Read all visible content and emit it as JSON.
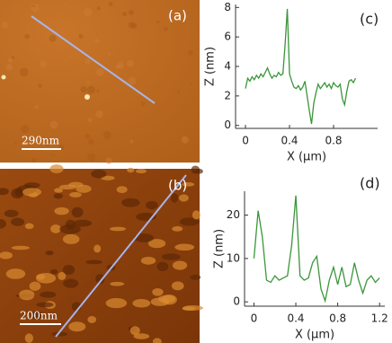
{
  "images": [
    {
      "label": "(a)",
      "scale_bar": "290nm"
    },
    {
      "label": "(b)",
      "scale_bar": "200nm"
    }
  ],
  "chart_data": [
    {
      "type": "line",
      "label": "(c)",
      "x_label": "X (µm)",
      "y_label": "Z (nm)",
      "x": [
        0,
        0.02,
        0.04,
        0.06,
        0.08,
        0.1,
        0.12,
        0.14,
        0.16,
        0.18,
        0.2,
        0.22,
        0.24,
        0.26,
        0.28,
        0.3,
        0.32,
        0.34,
        0.36,
        0.38,
        0.4,
        0.42,
        0.44,
        0.46,
        0.48,
        0.5,
        0.52,
        0.54,
        0.56,
        0.58,
        0.6,
        0.62,
        0.64,
        0.66,
        0.68,
        0.7,
        0.72,
        0.74,
        0.76,
        0.78,
        0.8,
        0.82,
        0.84,
        0.86,
        0.88,
        0.9,
        0.92,
        0.94,
        0.96,
        0.98,
        1.0
      ],
      "series": [
        {
          "color": "#3a963a",
          "values": [
            2.5,
            3.2,
            3.0,
            3.3,
            3.1,
            3.4,
            3.2,
            3.5,
            3.3,
            3.6,
            3.9,
            3.5,
            3.2,
            3.4,
            3.3,
            3.6,
            3.4,
            3.5,
            5.5,
            7.9,
            3.5,
            3.0,
            2.6,
            2.5,
            2.7,
            2.4,
            2.6,
            3.0,
            2.0,
            1.0,
            0.1,
            1.5,
            2.2,
            2.8,
            2.5,
            2.7,
            2.9,
            2.6,
            2.8,
            2.5,
            2.9,
            2.7,
            2.6,
            2.8,
            1.8,
            1.4,
            2.3,
            3.0,
            3.1,
            2.9,
            3.2
          ]
        }
      ],
      "xlim": [
        -0.09,
        1.2
      ],
      "ylim": [
        -0.2,
        8.2
      ],
      "xticks": [
        0,
        0.4,
        0.8
      ],
      "yticks": [
        0,
        2,
        4,
        6,
        8
      ]
    },
    {
      "type": "line",
      "label": "(d)",
      "x_label": "X (µm)",
      "y_label": "Z (nm)",
      "x": [
        0,
        0.04,
        0.08,
        0.12,
        0.16,
        0.2,
        0.24,
        0.28,
        0.32,
        0.36,
        0.4,
        0.44,
        0.48,
        0.52,
        0.56,
        0.6,
        0.64,
        0.68,
        0.72,
        0.76,
        0.8,
        0.84,
        0.88,
        0.92,
        0.96,
        1.0,
        1.04,
        1.08,
        1.12,
        1.16,
        1.2
      ],
      "series": [
        {
          "color": "#3a963a",
          "values": [
            10,
            21,
            15,
            5,
            4.5,
            6,
            5,
            5.5,
            6,
            13,
            24.5,
            6,
            5,
            5.5,
            9,
            10.5,
            3,
            0.2,
            5,
            8,
            4,
            8,
            3.5,
            4,
            9,
            5,
            2,
            5,
            6,
            4.5,
            5.5
          ]
        }
      ],
      "xlim": [
        -0.09,
        1.25
      ],
      "ylim": [
        -1,
        25.5
      ],
      "xticks": [
        0,
        0.4,
        0.8,
        1.2
      ],
      "yticks": [
        0,
        10,
        20
      ]
    }
  ]
}
